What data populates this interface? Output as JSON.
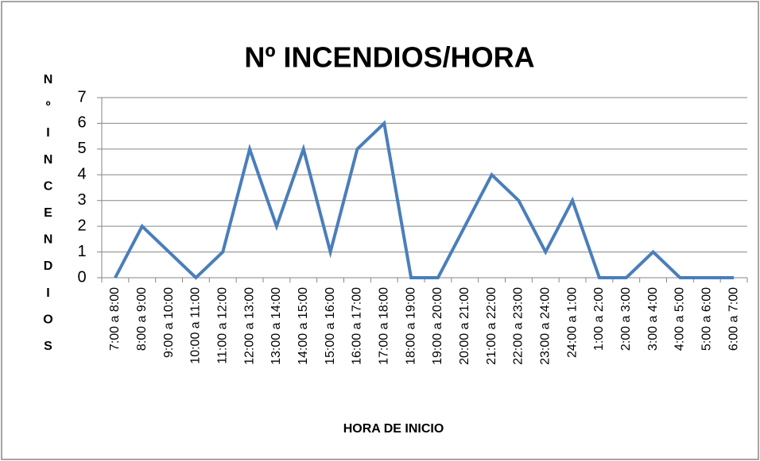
{
  "chart_data": {
    "type": "line",
    "title": "Nº INCENDIOS/HORA",
    "y_label": "NºINCENDIOS",
    "x_label": "HORA DE INICIO",
    "categories": [
      "7:00 a 8:00",
      "8:00 a 9:00",
      "9:00 a 10:00",
      "10:00 a 11:00",
      "11:00 a 12:00",
      "12:00 a 13:00",
      "13:00 a 14:00",
      "14:00 a 15:00",
      "15:00 a 16:00",
      "16:00 a 17:00",
      "17:00 a 18:00",
      "18:00 a 19:00",
      "19:00 a 20:00",
      "20:00 a 21:00",
      "21:00 a 22:00",
      "22:00 a 23:00",
      "23:00 a 24:00",
      "24:00 a 1:00",
      "1:00 a 2:00",
      "2:00 a 3:00",
      "3:00 a 4:00",
      "4:00 a 5:00",
      "5:00 a 6:00",
      "6:00 a 7:00"
    ],
    "values": [
      0,
      2,
      1,
      0,
      1,
      5,
      2,
      5,
      1,
      5,
      6,
      0,
      0,
      2,
      4,
      3,
      1,
      3,
      0,
      0,
      1,
      0,
      0,
      0
    ],
    "color": "#4a7ebb",
    "ylim": [
      0,
      7
    ],
    "yticks": [
      0,
      1,
      2,
      3,
      4,
      5,
      6,
      7
    ],
    "grid": true
  }
}
